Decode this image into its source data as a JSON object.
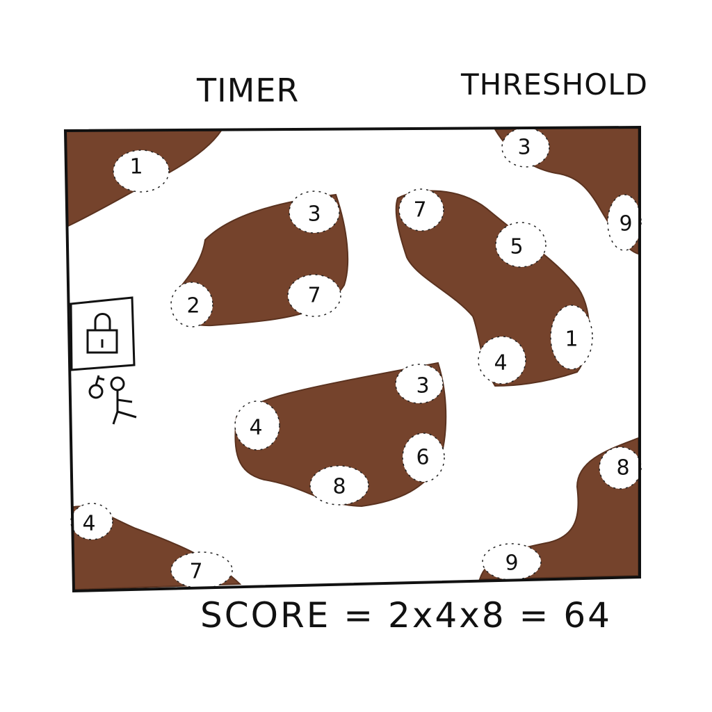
{
  "hud": {
    "timer_label": "TIMER",
    "threshold_label": "THRESHOLD",
    "score_text": "SCORE = 2x4x8 = 64"
  },
  "player": {
    "key_icon": "key-icon",
    "player_icon": "stick-figure-icon"
  },
  "door": {
    "icon": "padlock-icon"
  },
  "colors": {
    "island": "#75432c",
    "tile": "#ffffff",
    "ink": "#111111"
  },
  "tiles": {
    "tl_1": "1",
    "a_3": "3",
    "a_2": "2",
    "a_7": "7",
    "b_7": "7",
    "b_5": "5",
    "b_1": "1",
    "b_4": "4",
    "c_3": "3",
    "c_4": "4",
    "c_6": "6",
    "c_8": "8",
    "tr_3": "3",
    "tr_9": "9",
    "bl_4": "4",
    "bl_7": "7",
    "br_8": "8",
    "br_9": "9"
  }
}
